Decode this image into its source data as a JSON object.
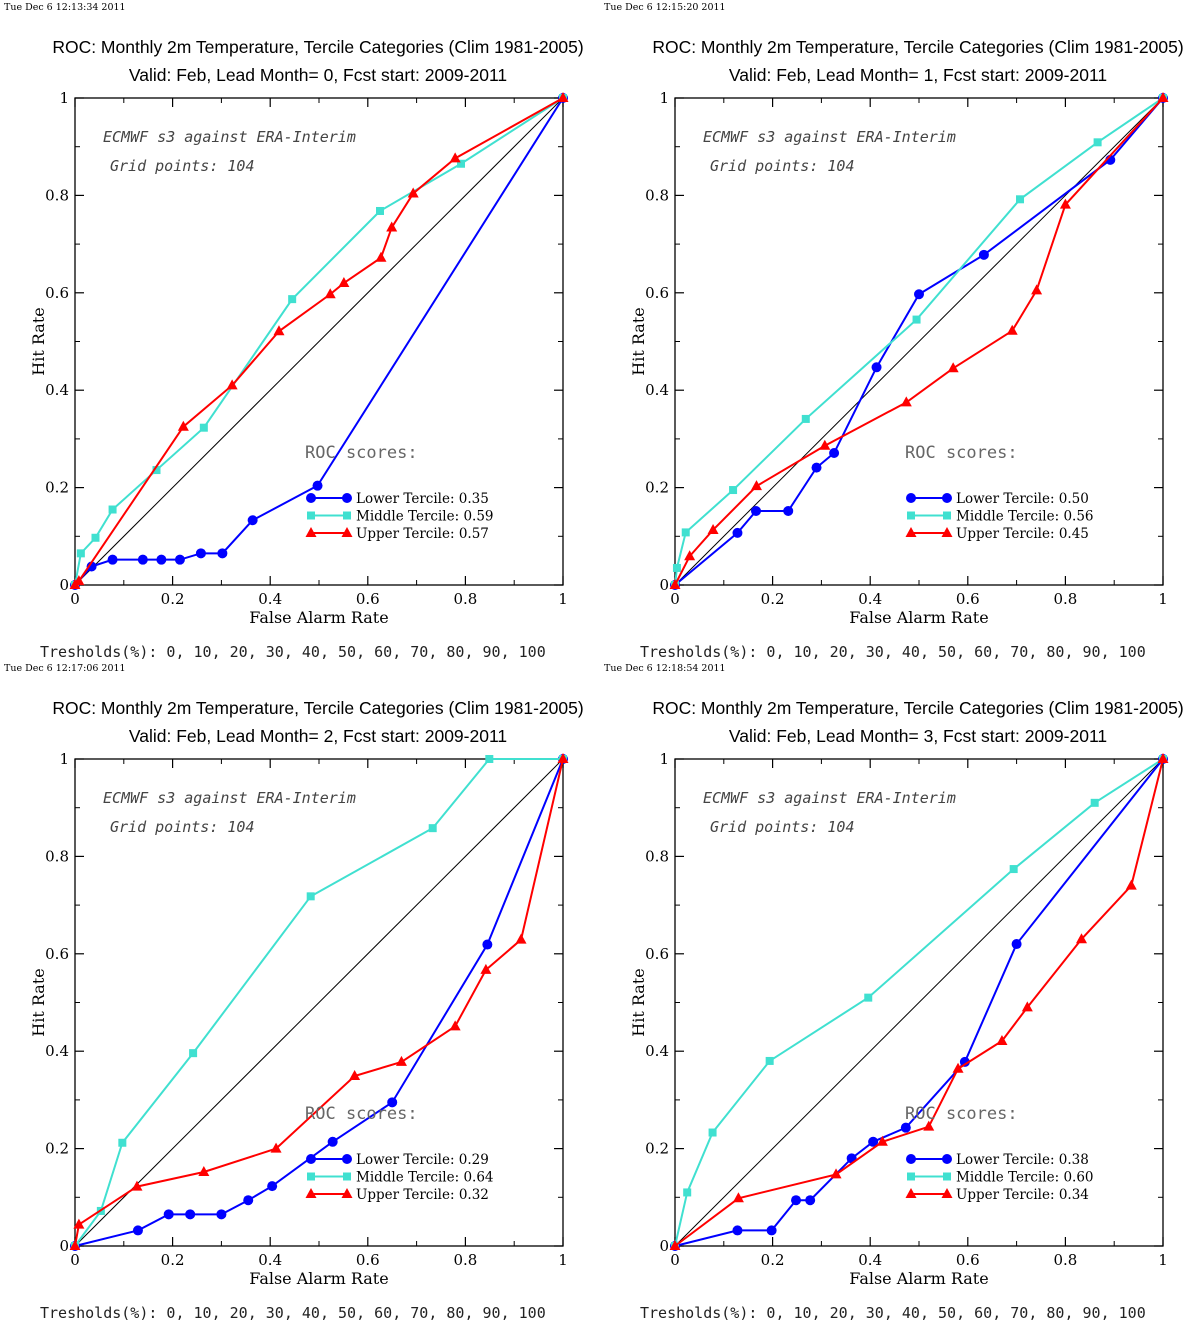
{
  "chart_data": [
    {
      "type": "line",
      "timestamp": "Tue Dec  6 12:13:34 2011",
      "title": "ROC: Monthly 2m Temperature, Tercile Categories (Clim 1981-2005)",
      "subtitle": "Valid: Feb, Lead Month= 0, Fcst start: 2009-2011",
      "xlabel": "False Alarm Rate",
      "ylabel": "Hit Rate",
      "xlim": [
        0,
        1
      ],
      "ylim": [
        0,
        1
      ],
      "x_ticks": [
        "0",
        "0.2",
        "0.4",
        "0.6",
        "0.8",
        "1"
      ],
      "y_ticks": [
        "0",
        "0.2",
        "0.4",
        "0.6",
        "0.8",
        "1"
      ],
      "annotations": [
        "ECMWF s3 against ERA-Interim",
        "Grid points:  104"
      ],
      "legend_title": "ROC scores:",
      "footer": "Tresholds(%): 0, 10, 20, 30, 40, 50, 60, 70, 80, 90, 100",
      "series": [
        {
          "name": "Lower Tercile: 0.35",
          "color": "#0000ff",
          "marker": "circle",
          "x": [
            0,
            0.034,
            0.077,
            0.139,
            0.177,
            0.215,
            0.258,
            0.302,
            0.364,
            0.497,
            1
          ],
          "y": [
            0,
            0.038,
            0.052,
            0.052,
            0.052,
            0.052,
            0.065,
            0.065,
            0.133,
            0.204,
            1
          ]
        },
        {
          "name": "Middle Tercile: 0.59",
          "color": "#40e0d0",
          "marker": "square",
          "x": [
            0,
            0.012,
            0.042,
            0.077,
            0.167,
            0.264,
            0.445,
            0.625,
            0.791,
            1
          ],
          "y": [
            0,
            0.065,
            0.097,
            0.155,
            0.236,
            0.323,
            0.587,
            0.768,
            0.865,
            1
          ]
        },
        {
          "name": "Upper Tercile: 0.57",
          "color": "#ff0000",
          "marker": "triangle",
          "x": [
            0,
            0.008,
            0.222,
            0.322,
            0.418,
            0.523,
            0.551,
            0.627,
            0.649,
            0.693,
            0.779,
            1
          ],
          "y": [
            0,
            0.008,
            0.325,
            0.41,
            0.521,
            0.597,
            0.62,
            0.672,
            0.734,
            0.804,
            0.876,
            1
          ]
        }
      ]
    },
    {
      "type": "line",
      "timestamp": "Tue Dec  6 12:15:20 2011",
      "title": "ROC: Monthly 2m Temperature, Tercile Categories (Clim 1981-2005)",
      "subtitle": "Valid: Feb, Lead Month= 1, Fcst start: 2009-2011",
      "xlabel": "False Alarm Rate",
      "ylabel": "Hit Rate",
      "xlim": [
        0,
        1
      ],
      "ylim": [
        0,
        1
      ],
      "x_ticks": [
        "0",
        "0.2",
        "0.4",
        "0.6",
        "0.8",
        "1"
      ],
      "y_ticks": [
        "0",
        "0.2",
        "0.4",
        "0.6",
        "0.8",
        "1"
      ],
      "annotations": [
        "ECMWF s3 against ERA-Interim",
        "Grid points:  104"
      ],
      "legend_title": "ROC scores:",
      "footer": "Tresholds(%): 0, 10, 20, 30, 40, 50, 60, 70, 80, 90, 100",
      "series": [
        {
          "name": "Lower Tercile: 0.50",
          "color": "#0000ff",
          "marker": "circle",
          "x": [
            0,
            0.128,
            0.166,
            0.232,
            0.29,
            0.326,
            0.413,
            0.5,
            0.633,
            0.892,
            1
          ],
          "y": [
            0,
            0.107,
            0.152,
            0.152,
            0.241,
            0.271,
            0.447,
            0.597,
            0.678,
            0.873,
            1
          ]
        },
        {
          "name": "Middle Tercile: 0.56",
          "color": "#40e0d0",
          "marker": "square",
          "x": [
            0,
            0.004,
            0.022,
            0.119,
            0.268,
            0.495,
            0.707,
            0.866,
            1
          ],
          "y": [
            0,
            0.035,
            0.108,
            0.195,
            0.341,
            0.545,
            0.792,
            0.909,
            1
          ]
        },
        {
          "name": "Upper Tercile: 0.45",
          "color": "#ff0000",
          "marker": "triangle",
          "x": [
            0,
            0.03,
            0.078,
            0.167,
            0.307,
            0.474,
            0.57,
            0.691,
            0.741,
            0.8,
            1
          ],
          "y": [
            0,
            0.059,
            0.113,
            0.203,
            0.286,
            0.375,
            0.445,
            0.522,
            0.605,
            0.781,
            1
          ]
        }
      ]
    },
    {
      "type": "line",
      "timestamp": "Tue Dec  6 12:17:06 2011",
      "title": "ROC: Monthly 2m Temperature, Tercile Categories (Clim 1981-2005)",
      "subtitle": "Valid: Feb, Lead Month= 2, Fcst start: 2009-2011",
      "xlabel": "False Alarm Rate",
      "ylabel": "Hit Rate",
      "xlim": [
        0,
        1
      ],
      "ylim": [
        0,
        1
      ],
      "x_ticks": [
        "0",
        "0.2",
        "0.4",
        "0.6",
        "0.8",
        "1"
      ],
      "y_ticks": [
        "0",
        "0.2",
        "0.4",
        "0.6",
        "0.8",
        "1"
      ],
      "annotations": [
        "ECMWF s3 against ERA-Interim",
        "Grid points:  104"
      ],
      "legend_title": "ROC scores:",
      "footer": "Tresholds(%): 0, 10, 20, 30, 40, 50, 60, 70, 80, 90, 100",
      "series": [
        {
          "name": "Lower Tercile: 0.29",
          "color": "#0000ff",
          "marker": "circle",
          "x": [
            0,
            0.129,
            0.192,
            0.236,
            0.3,
            0.355,
            0.404,
            0.528,
            0.65,
            0.845,
            1
          ],
          "y": [
            0,
            0.032,
            0.065,
            0.065,
            0.065,
            0.094,
            0.123,
            0.214,
            0.295,
            0.619,
            1
          ]
        },
        {
          "name": "Middle Tercile: 0.64",
          "color": "#40e0d0",
          "marker": "square",
          "x": [
            0,
            0.053,
            0.097,
            0.242,
            0.483,
            0.733,
            0.849,
            1
          ],
          "y": [
            0,
            0.072,
            0.212,
            0.396,
            0.718,
            0.858,
            1,
            1
          ]
        },
        {
          "name": "Upper Tercile: 0.32",
          "color": "#ff0000",
          "marker": "triangle",
          "x": [
            0,
            0.008,
            0.127,
            0.264,
            0.412,
            0.573,
            0.669,
            0.779,
            0.842,
            0.914,
            1
          ],
          "y": [
            0,
            0.044,
            0.122,
            0.152,
            0.2,
            0.349,
            0.378,
            0.451,
            0.567,
            0.629,
            1
          ]
        }
      ]
    },
    {
      "type": "line",
      "timestamp": "Tue Dec  6 12:18:54 2011",
      "title": "ROC: Monthly 2m Temperature, Tercile Categories (Clim 1981-2005)",
      "subtitle": "Valid: Feb, Lead Month= 3, Fcst start: 2009-2011",
      "xlabel": "False Alarm Rate",
      "ylabel": "Hit Rate",
      "xlim": [
        0,
        1
      ],
      "ylim": [
        0,
        1
      ],
      "x_ticks": [
        "0",
        "0.2",
        "0.4",
        "0.6",
        "0.8",
        "1"
      ],
      "y_ticks": [
        "0",
        "0.2",
        "0.4",
        "0.6",
        "0.8",
        "1"
      ],
      "annotations": [
        "ECMWF s3 against ERA-Interim",
        "Grid points:  104"
      ],
      "legend_title": "ROC scores:",
      "footer": "Tresholds(%): 0, 10, 20, 30, 40, 50, 60, 70, 80, 90, 100",
      "series": [
        {
          "name": "Lower Tercile: 0.38",
          "color": "#0000ff",
          "marker": "circle",
          "x": [
            0,
            0.128,
            0.198,
            0.248,
            0.277,
            0.362,
            0.406,
            0.473,
            0.594,
            0.7,
            1
          ],
          "y": [
            0,
            0.032,
            0.032,
            0.094,
            0.094,
            0.18,
            0.214,
            0.243,
            0.378,
            0.62,
            1
          ]
        },
        {
          "name": "Middle Tercile: 0.60",
          "color": "#40e0d0",
          "marker": "square",
          "x": [
            0,
            0.025,
            0.077,
            0.194,
            0.396,
            0.694,
            0.86,
            1
          ],
          "y": [
            0,
            0.11,
            0.233,
            0.38,
            0.51,
            0.774,
            0.91,
            1
          ]
        },
        {
          "name": "Upper Tercile: 0.34",
          "color": "#ff0000",
          "marker": "triangle",
          "x": [
            0,
            0.13,
            0.33,
            0.425,
            0.52,
            0.58,
            0.67,
            0.722,
            0.833,
            0.935,
            1
          ],
          "y": [
            0,
            0.098,
            0.147,
            0.214,
            0.245,
            0.364,
            0.421,
            0.49,
            0.63,
            0.74,
            1
          ]
        }
      ]
    }
  ]
}
